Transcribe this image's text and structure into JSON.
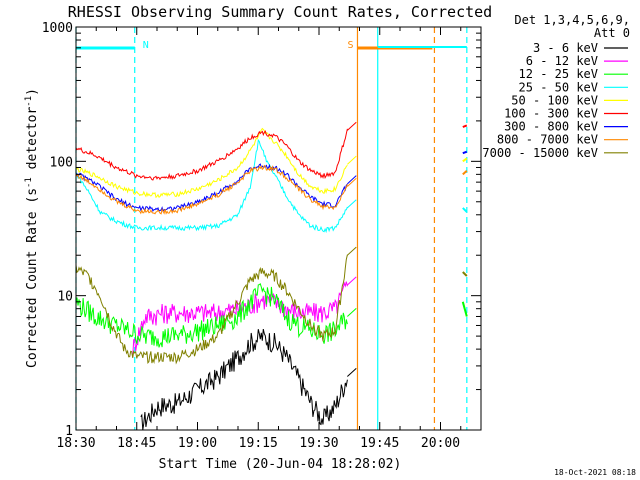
{
  "chart_data": {
    "type": "line",
    "title": "RHESSI Observing Summary Count Rates, Corrected",
    "xlabel": "Start Time (20-Jun-04 18:28:02)",
    "ylabel": "Corrected Count Rate (s",
    "ylabel_exp1": "-1",
    "ylabel_mid": " detector",
    "ylabel_exp2": "-1",
    "ylabel_end": ")",
    "yscale": "log",
    "ylim": [
      1,
      1000
    ],
    "xlim_minutes": [
      -30,
      70
    ],
    "x_ticks": [
      {
        "minute": -30,
        "label": "18:30"
      },
      {
        "minute": -15,
        "label": "18:45"
      },
      {
        "minute": 0,
        "label": "19:00"
      },
      {
        "minute": 15,
        "label": "19:15"
      },
      {
        "minute": 30,
        "label": "19:30"
      },
      {
        "minute": 45,
        "label": "19:45"
      },
      {
        "minute": 60,
        "label": "20:00"
      }
    ],
    "y_ticks": [
      {
        "value": 1,
        "label": "1"
      },
      {
        "value": 10,
        "label": "10"
      },
      {
        "value": 100,
        "label": "100"
      },
      {
        "value": 1000,
        "label": "1000"
      }
    ],
    "legend_header": [
      "Det 1,3,4,5,6,9,",
      "Att 0"
    ],
    "legend_position": "right",
    "series": [
      {
        "name": "3 - 6 keV",
        "color": "#000000",
        "x": [
          -14,
          -10,
          -5,
          0,
          5,
          10,
          13,
          16,
          19,
          22,
          25,
          28,
          31,
          34,
          37
        ],
        "values": [
          1.1,
          1.5,
          1.6,
          2.0,
          2.5,
          3.5,
          4.5,
          5.0,
          4.5,
          3.5,
          2.4,
          1.6,
          1.2,
          1.5,
          2.5
        ]
      },
      {
        "name": "6 - 12 keV",
        "color": "#ff00ff",
        "x": [
          -16,
          -13,
          -8,
          -3,
          0,
          5,
          10,
          13,
          16,
          19,
          22,
          25,
          28,
          31,
          34,
          37
        ],
        "values": [
          4,
          7,
          7.5,
          7.5,
          7.5,
          7.5,
          8,
          8.5,
          9.5,
          9,
          8,
          7.5,
          7.5,
          7.5,
          8,
          12
        ]
      },
      {
        "name": "12 - 25 keV",
        "color": "#00ff00",
        "x": [
          -30,
          -25,
          -20,
          -17,
          -13,
          -8,
          -3,
          0,
          5,
          10,
          13,
          16,
          19,
          22,
          25,
          28,
          31,
          34,
          37
        ],
        "values": [
          9,
          7,
          6,
          5.5,
          5,
          5,
          5.2,
          5.5,
          6,
          7,
          9,
          11,
          9.5,
          7,
          6,
          5.5,
          5.2,
          5.5,
          7
        ]
      },
      {
        "name": "25 - 50 keV",
        "color": "#00ffff",
        "x": [
          -30,
          -27,
          -24,
          -21,
          -18,
          -15,
          -10,
          -5,
          0,
          5,
          10,
          13,
          15,
          16,
          17,
          19,
          22,
          25,
          28,
          31,
          34,
          37
        ],
        "values": [
          82,
          60,
          42,
          37,
          34,
          32,
          32,
          32,
          32,
          33,
          40,
          65,
          140,
          125,
          100,
          80,
          55,
          40,
          33,
          31,
          32,
          45
        ]
      },
      {
        "name": "50 - 100 keV",
        "color": "#ffff00",
        "x": [
          -30,
          -25,
          -20,
          -15,
          -10,
          -5,
          0,
          5,
          10,
          13,
          16,
          19,
          22,
          25,
          28,
          31,
          34,
          37
        ],
        "values": [
          88,
          78,
          65,
          58,
          56,
          57,
          62,
          72,
          90,
          120,
          170,
          140,
          110,
          80,
          65,
          60,
          62,
          95
        ]
      },
      {
        "name": "100 - 300 keV",
        "color": "#ff0000",
        "x": [
          -30,
          -25,
          -20,
          -15,
          -10,
          -5,
          0,
          5,
          10,
          13,
          16,
          19,
          22,
          25,
          28,
          31,
          34,
          37
        ],
        "values": [
          125,
          110,
          90,
          78,
          75,
          78,
          85,
          100,
          125,
          150,
          165,
          155,
          130,
          100,
          85,
          78,
          82,
          170
        ]
      },
      {
        "name": "300 - 800 keV",
        "color": "#0000ff",
        "x": [
          -30,
          -25,
          -20,
          -15,
          -10,
          -5,
          0,
          5,
          10,
          13,
          16,
          19,
          22,
          25,
          28,
          31,
          34,
          37
        ],
        "values": [
          82,
          68,
          52,
          45,
          44,
          45,
          50,
          58,
          72,
          88,
          93,
          90,
          80,
          65,
          54,
          48,
          47,
          68
        ]
      },
      {
        "name": "800 - 7000 keV",
        "color": "#ff8800",
        "x": [
          -30,
          -25,
          -20,
          -15,
          -10,
          -5,
          0,
          5,
          10,
          13,
          16,
          19,
          22,
          25,
          28,
          31,
          34,
          37
        ],
        "values": [
          80,
          65,
          50,
          43,
          42,
          43,
          48,
          56,
          70,
          85,
          90,
          88,
          76,
          62,
          52,
          46,
          45,
          65
        ]
      },
      {
        "name": "7000 - 15000 keV",
        "color": "#808000",
        "x": [
          -30,
          -27,
          -24,
          -21,
          -18,
          -15,
          -10,
          -5,
          0,
          5,
          10,
          13,
          16,
          19,
          22,
          25,
          28,
          31,
          34,
          37
        ],
        "values": [
          16,
          14,
          10,
          6,
          4,
          3.5,
          3.5,
          3.5,
          4,
          5,
          9,
          13,
          15,
          14,
          11,
          8,
          6,
          5,
          5.5,
          20
        ]
      }
    ],
    "after_gap_series": [
      {
        "series": "100 - 300 keV",
        "color": "#ff0000",
        "x": [
          65.5,
          66.5
        ],
        "values": [
          180,
          185
        ]
      },
      {
        "series": "300 - 800 keV",
        "color": "#0000ff",
        "x": [
          65.5,
          66.5
        ],
        "values": [
          115,
          118
        ]
      },
      {
        "series": "50 - 100 keV",
        "color": "#ffff00",
        "x": [
          65.5,
          66.5
        ],
        "values": [
          100,
          105
        ]
      },
      {
        "series": "800 - 7000 keV",
        "color": "#ff8800",
        "x": [
          65.5,
          66.5
        ],
        "values": [
          80,
          85
        ]
      },
      {
        "series": "25 - 50 keV",
        "color": "#00ffff",
        "x": [
          65.5,
          66.5
        ],
        "values": [
          45,
          42
        ]
      },
      {
        "series": "7000 - 15000 keV",
        "color": "#808000",
        "x": [
          65.5,
          66.5
        ],
        "values": [
          15,
          14
        ]
      },
      {
        "series": "12 - 25 keV",
        "color": "#00ff00",
        "x": [
          65.5,
          66.5
        ],
        "values": [
          9,
          7
        ]
      }
    ],
    "annotations": {
      "night_bars": [
        {
          "label": "N",
          "color": "#00ffff",
          "x_start": -30,
          "x_end": -15.5
        },
        {
          "label": "S",
          "color": "#ff8800",
          "x_start": 39.5,
          "x_end": 58
        }
      ],
      "extra_bar": {
        "color": "#00ffff",
        "x_start": 44.5,
        "x_end": 66.5
      },
      "vlines": [
        {
          "x": -30,
          "color": "#00ffff",
          "style": "dashed"
        },
        {
          "x": -15.5,
          "color": "#00ffff",
          "style": "dashed"
        },
        {
          "x": 39.5,
          "color": "#ff8800",
          "style": "solid"
        },
        {
          "x": 44.5,
          "color": "#00ffff",
          "style": "solid"
        },
        {
          "x": 58.5,
          "color": "#ff8800",
          "style": "dashed"
        },
        {
          "x": 66.5,
          "color": "#00ffff",
          "style": "dashed"
        }
      ]
    },
    "footer": "18-Oct-2021 08:18",
    "grid": false
  }
}
